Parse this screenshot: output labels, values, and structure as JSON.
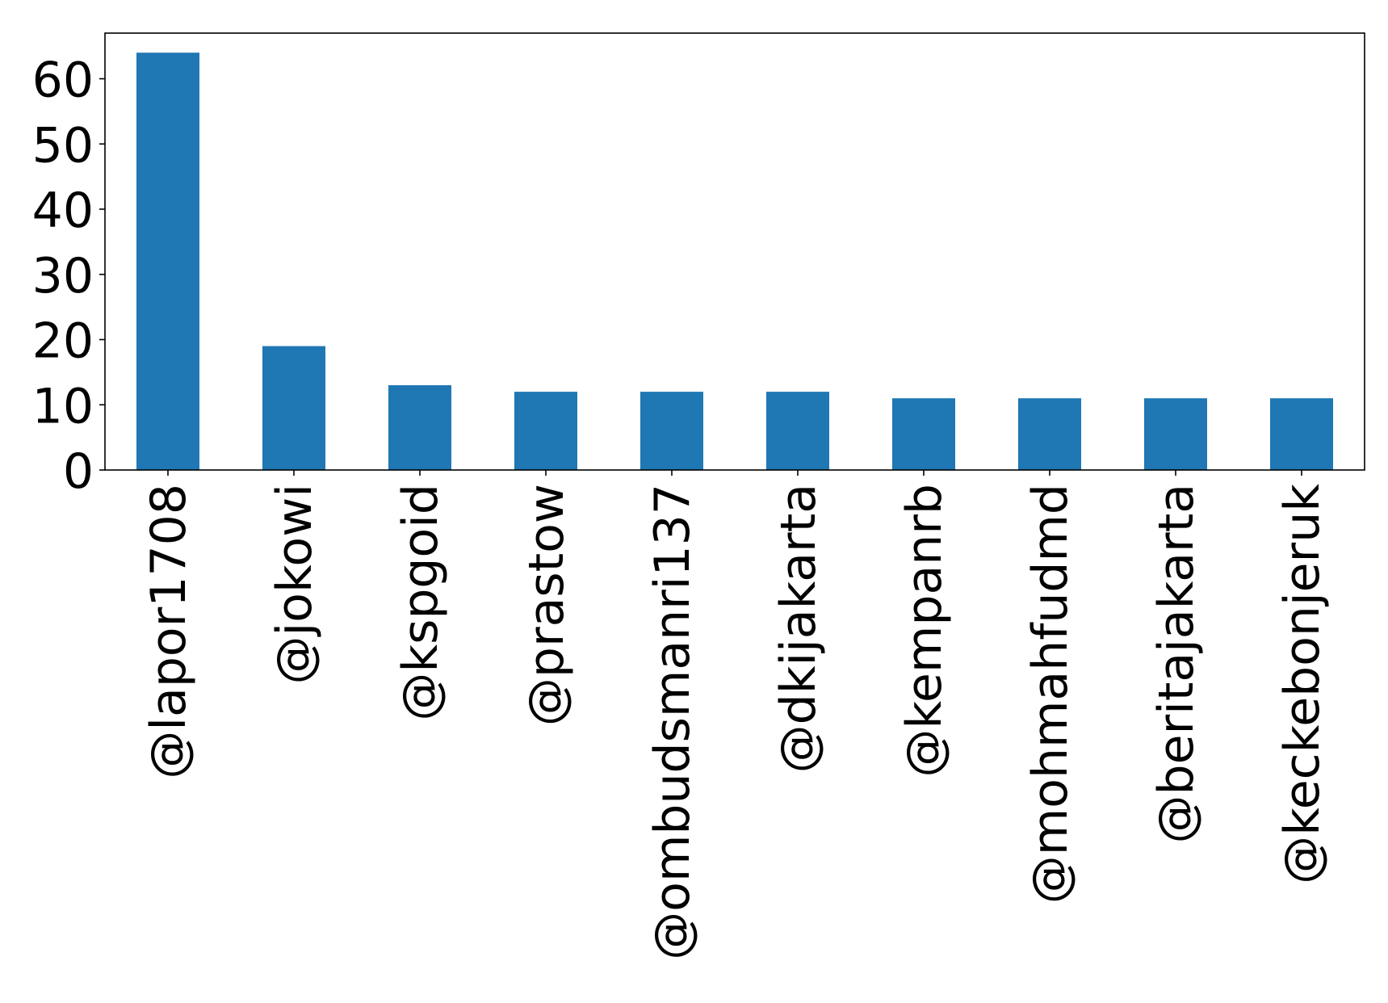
{
  "chart_data": {
    "type": "bar",
    "categories": [
      "@lapor1708",
      "@jokowi",
      "@kspgoid",
      "@prastow",
      "@ombudsmanri137",
      "@dkijakarta",
      "@kempanrb",
      "@mohmahfudmd",
      "@beritajakarta",
      "@keckebonjeruk"
    ],
    "values": [
      64,
      19,
      13,
      12,
      12,
      12,
      11,
      11,
      11,
      11
    ],
    "title": "",
    "xlabel": "",
    "ylabel": "",
    "ylim": [
      0,
      67
    ],
    "yticks": [
      0,
      10,
      20,
      30,
      40,
      50,
      60
    ],
    "bar_color": "#1f77b4",
    "grid": false,
    "legend": "none"
  }
}
